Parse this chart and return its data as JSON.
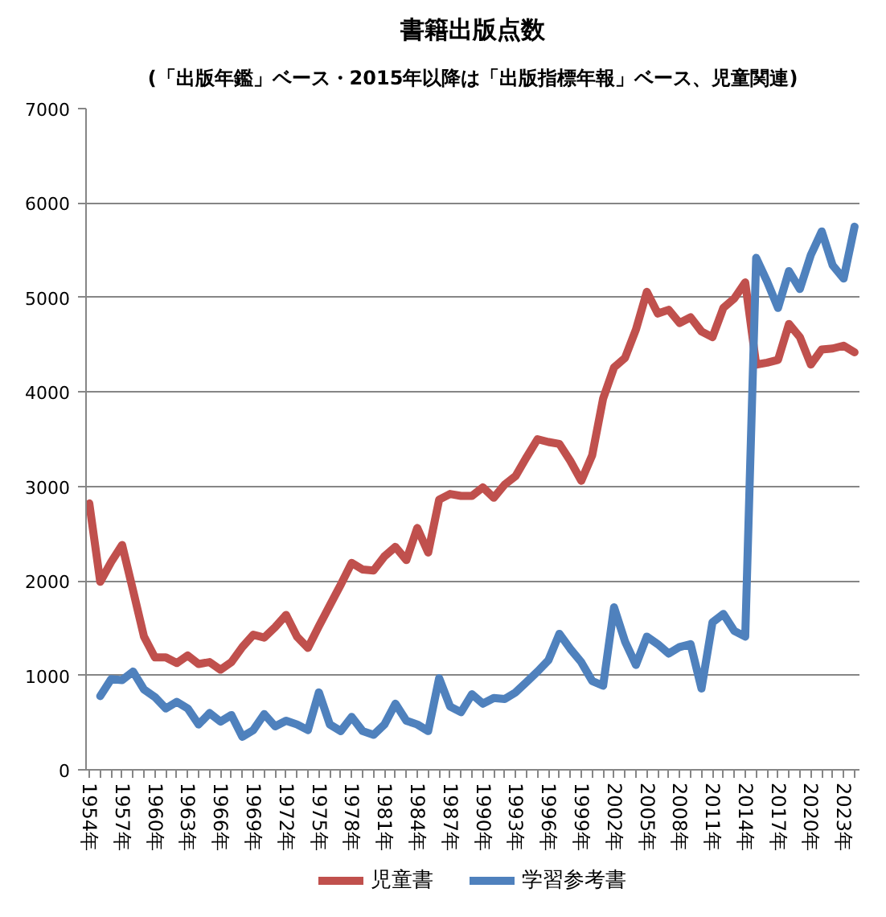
{
  "chart_data": {
    "type": "line",
    "title": "書籍出版点数",
    "subtitle": "(「出版年鑑」ベース・2015年以降は「出版指標年報」ベース、児童関連)",
    "categories": [
      "1954年",
      null,
      null,
      "1957年",
      null,
      null,
      "1960年",
      null,
      null,
      "1963年",
      null,
      null,
      "1966年",
      null,
      null,
      "1969年",
      null,
      null,
      "1972年",
      null,
      null,
      "1975年",
      null,
      null,
      "1978年",
      null,
      null,
      "1981年",
      null,
      null,
      "1984年",
      null,
      null,
      "1987年",
      null,
      null,
      "1990年",
      null,
      null,
      "1993年",
      null,
      null,
      "1996年",
      null,
      null,
      "1999年",
      null,
      null,
      "2002年",
      null,
      null,
      "2005年",
      null,
      null,
      "2008年",
      null,
      null,
      "2011年",
      null,
      null,
      "2014年",
      null,
      null,
      "2017年",
      null,
      null,
      "2020年",
      null,
      null,
      "2023年",
      null
    ],
    "series": [
      {
        "name": "児童書",
        "color": "#c0504d",
        "values": [
          2820,
          1990,
          2200,
          2380,
          1900,
          1410,
          1190,
          1190,
          1130,
          1210,
          1120,
          1140,
          1060,
          1140,
          1300,
          1430,
          1400,
          1510,
          1640,
          1410,
          1290,
          1520,
          1740,
          1960,
          2190,
          2120,
          2110,
          2260,
          2360,
          2220,
          2560,
          2300,
          2860,
          2920,
          2900,
          2900,
          2990,
          2880,
          3020,
          3110,
          3310,
          3500,
          3470,
          3450,
          3270,
          3060,
          3330,
          3930,
          4260,
          4360,
          4660,
          5060,
          4830,
          4870,
          4730,
          4790,
          4640,
          4580,
          4890,
          4990,
          5160,
          4290,
          4310,
          4340,
          4720,
          4580,
          4290,
          4450,
          4460,
          4490,
          4420
        ]
      },
      {
        "name": "学習参考書",
        "color": "#4f81bd",
        "values": [
          null,
          780,
          960,
          950,
          1040,
          850,
          770,
          650,
          720,
          650,
          480,
          600,
          510,
          580,
          350,
          420,
          590,
          460,
          520,
          480,
          420,
          820,
          480,
          410,
          560,
          410,
          370,
          480,
          700,
          520,
          480,
          410,
          970,
          670,
          610,
          800,
          700,
          760,
          750,
          820,
          930,
          1040,
          1160,
          1440,
          1280,
          1140,
          940,
          890,
          1720,
          1360,
          1110,
          1410,
          1330,
          1230,
          1300,
          1330,
          860,
          1560,
          1650,
          1470,
          1410,
          5420,
          5170,
          4890,
          5280,
          5090,
          5450,
          5700,
          5340,
          5200,
          5750
        ]
      }
    ],
    "ylim": [
      0,
      7000
    ],
    "yticks": [
      0,
      1000,
      2000,
      3000,
      4000,
      5000,
      6000,
      7000
    ],
    "grid": "y",
    "legend": "bottom"
  }
}
